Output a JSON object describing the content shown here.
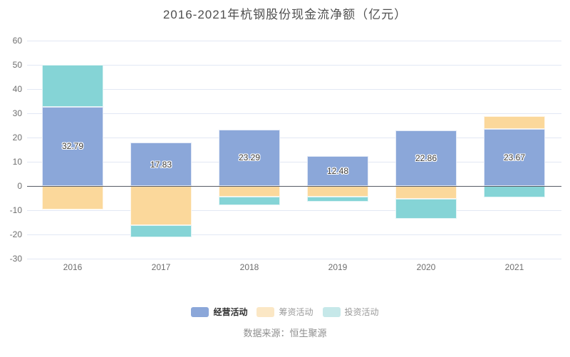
{
  "title": "2016-2021年杭钢股份现金流净额（亿元）",
  "source": "数据来源：恒生聚源",
  "chart_data": {
    "type": "bar",
    "stacked": true,
    "title": "2016-2021年杭钢股份现金流净额（亿元）",
    "categories": [
      "2016",
      "2017",
      "2018",
      "2019",
      "2020",
      "2021"
    ],
    "series": [
      {
        "name": "经营活动",
        "key": "operating",
        "color": "#8ba7d9",
        "values": [
          32.79,
          17.83,
          23.29,
          12.48,
          22.86,
          23.67
        ],
        "labels_shown": true
      },
      {
        "name": "筹资活动",
        "key": "financing",
        "color": "#fbd89b",
        "values": [
          -9.6,
          -16.3,
          -4.3,
          -4.3,
          -5.3,
          5.2
        ],
        "labels_shown": false
      },
      {
        "name": "投资活动",
        "key": "investing",
        "color": "#85d4d6",
        "values": [
          17.21,
          -4.9,
          -3.5,
          -2.2,
          -8.3,
          -4.7
        ],
        "labels_shown": false
      }
    ],
    "ylim": [
      -30,
      60
    ],
    "y_ticks": [
      60,
      50,
      40,
      30,
      20,
      10,
      0,
      -10,
      -20,
      -30
    ],
    "grid": true,
    "legend_position": "bottom"
  },
  "legend": {
    "items": [
      {
        "label": "经营活动",
        "key": "operating",
        "swatch_color": "#8ba7d9",
        "text_color": "#2d2d2d",
        "emphasized": true
      },
      {
        "label": "筹资活动",
        "key": "financing",
        "swatch_color": "#fbe7c5",
        "text_color": "#9a9a9a",
        "emphasized": false
      },
      {
        "label": "投资活动",
        "key": "investing",
        "swatch_color": "#c6e8e9",
        "text_color": "#9a9a9a",
        "emphasized": false
      }
    ]
  },
  "colors": {
    "gridline": "#e2e8f4",
    "zero_line": "#565b66",
    "axis_label": "#6e6e6e",
    "title_text": "#4f4f4f",
    "source_text": "#8e8e8e",
    "bar_label": "#3a3a3a"
  }
}
